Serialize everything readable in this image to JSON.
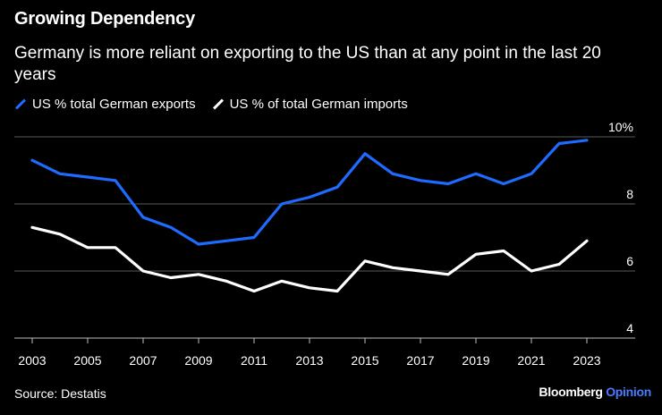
{
  "chart_data": {
    "type": "line",
    "title": "Growing Dependency",
    "subtitle": "Germany is more reliant on exporting to the US than at any point in the last 20 years",
    "x": [
      2003,
      2004,
      2005,
      2006,
      2007,
      2008,
      2009,
      2010,
      2011,
      2012,
      2013,
      2014,
      2015,
      2016,
      2017,
      2018,
      2019,
      2020,
      2021,
      2022,
      2023
    ],
    "x_ticks": [
      "2003",
      "2005",
      "2007",
      "2009",
      "2011",
      "2013",
      "2015",
      "2017",
      "2019",
      "2021",
      "2023"
    ],
    "y_ticks": [
      {
        "value": 4,
        "label": "4"
      },
      {
        "value": 6,
        "label": "6"
      },
      {
        "value": 8,
        "label": "8"
      },
      {
        "value": 10,
        "label": "10%"
      }
    ],
    "ylim": [
      4,
      10
    ],
    "grid": true,
    "series": [
      {
        "name": "US % total German exports",
        "color": "#1f6bff",
        "values": [
          9.3,
          8.9,
          8.8,
          8.7,
          7.6,
          7.3,
          6.8,
          6.9,
          7.0,
          8.0,
          8.2,
          8.5,
          9.5,
          8.9,
          8.7,
          8.6,
          8.9,
          8.6,
          8.9,
          9.8,
          9.9
        ]
      },
      {
        "name": "US % of total German imports",
        "color": "#ffffff",
        "values": [
          7.3,
          7.1,
          6.7,
          6.7,
          6.0,
          5.8,
          5.9,
          5.7,
          5.4,
          5.7,
          5.5,
          5.4,
          6.3,
          6.1,
          6.0,
          5.9,
          6.5,
          6.6,
          6.0,
          6.2,
          6.9
        ]
      }
    ],
    "source": "Source: Destatis",
    "brand": "Bloomberg",
    "brand_suffix": "Opinion"
  }
}
